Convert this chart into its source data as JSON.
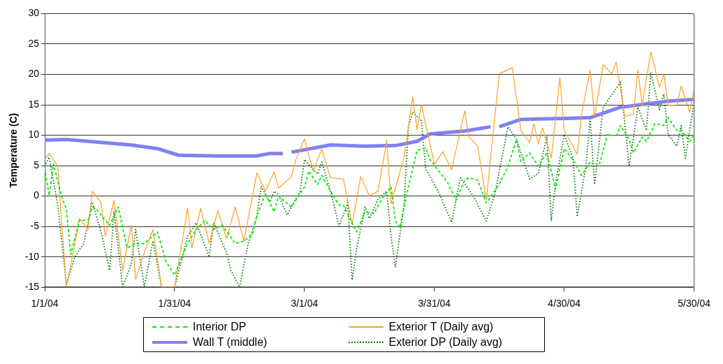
{
  "chart_data": {
    "type": "line",
    "ylabel": "Temperature (C)",
    "xlim": [
      "2004-01-01",
      "2004-05-30"
    ],
    "xticks": [
      {
        "value": "2004-01-01",
        "label": "1/1/04"
      },
      {
        "value": "2004-01-31",
        "label": "1/31/04"
      },
      {
        "value": "2004-03-01",
        "label": "3/1/04"
      },
      {
        "value": "2004-03-31",
        "label": "3/31/04"
      },
      {
        "value": "2004-04-30",
        "label": "4/30/04"
      },
      {
        "value": "2004-05-30",
        "label": "5/30/04"
      }
    ],
    "ylim": [
      -15,
      30
    ],
    "yticks": [
      -15,
      -10,
      -5,
      0,
      5,
      10,
      15,
      20,
      25,
      30
    ],
    "grid": "y",
    "legend": "bottom",
    "marker": "none",
    "series": [
      {
        "name": "Interior DP",
        "color": "#00ee00",
        "line_style": "dashed",
        "x": [
          "2004-01-01",
          "2004-01-02",
          "2004-01-03",
          "2004-01-05",
          "2004-01-06",
          "2004-01-07",
          "2004-01-09",
          "2004-01-11",
          "2004-01-12",
          "2004-01-13",
          "2004-01-15",
          "2004-01-16",
          "2004-01-18",
          "2004-01-20",
          "2004-01-22",
          "2004-01-24",
          "2004-01-27",
          "2004-01-29",
          "2004-01-31",
          "2004-02-03",
          "2004-02-05",
          "2004-02-07",
          "2004-02-09",
          "2004-02-11",
          "2004-02-14",
          "2004-02-16",
          "2004-02-18",
          "2004-02-19",
          "2004-02-21",
          "2004-02-23",
          "2004-02-24",
          "2004-02-27",
          "2004-03-01",
          "2004-03-02",
          "2004-03-04",
          "2004-03-05",
          "2004-03-07",
          "2004-03-09",
          "2004-03-10",
          "2004-03-13",
          "2004-03-15",
          "2004-03-17",
          "2004-03-19",
          "2004-03-21",
          "2004-03-22",
          "2004-03-23",
          "2004-03-25",
          "2004-03-27",
          "2004-03-29",
          "2004-03-30",
          "2004-04-01",
          "2004-04-03",
          "2004-04-05",
          "2004-04-07",
          "2004-04-08",
          "2004-04-10",
          "2004-04-12",
          "2004-04-15",
          "2004-04-17",
          "2004-04-19",
          "2004-04-20",
          "2004-04-22",
          "2004-04-24",
          "2004-04-26",
          "2004-04-28",
          "2004-04-30",
          "2004-05-02",
          "2004-05-04",
          "2004-05-06",
          "2004-05-08",
          "2004-05-10",
          "2004-05-12",
          "2004-05-13",
          "2004-05-15",
          "2004-05-16",
          "2004-05-18",
          "2004-05-19",
          "2004-05-21",
          "2004-05-23",
          "2004-05-24",
          "2004-05-26",
          "2004-05-27",
          "2004-05-29",
          "2004-05-30"
        ],
        "values": [
          4.6,
          0.1,
          5.3,
          -0.3,
          -2.2,
          -9.6,
          -4.0,
          -4.0,
          -1.8,
          -2.2,
          -4.0,
          -4.8,
          -1.8,
          -8.5,
          -7.8,
          -7.8,
          -5.9,
          -10.7,
          -13.0,
          -7.8,
          -5.5,
          -4.0,
          -5.5,
          -4.8,
          -7.8,
          -7.4,
          -6.3,
          -3.3,
          0.4,
          -2.6,
          0,
          -1.8,
          1.5,
          4.1,
          1.9,
          3.4,
          0.8,
          -1.5,
          -1.5,
          -5.9,
          -2.6,
          -2.9,
          -0.3,
          1.5,
          -4.1,
          -5.2,
          1.5,
          7.5,
          7.9,
          6.0,
          4.1,
          2.3,
          -0.7,
          2.6,
          3.0,
          2.6,
          -1.1,
          1.9,
          4.9,
          9.3,
          5.6,
          7.1,
          4.9,
          7.1,
          1.1,
          7.8,
          6.0,
          3.4,
          5.6,
          4.9,
          10.1,
          9.9,
          11.6,
          9.3,
          7.1,
          9.7,
          9.0,
          11.9,
          11.6,
          12.9,
          10.8,
          10.8,
          9.0,
          10.1
        ]
      },
      {
        "name": "Exterior T (Daily avg)",
        "color": "#ffa020",
        "line_style": "solid",
        "x": [
          "2004-01-01",
          "2004-01-02",
          "2004-01-04",
          "2004-01-05",
          "2004-01-06",
          "2004-01-07",
          "2004-01-09",
          "2004-01-11",
          "2004-01-12",
          "2004-01-14",
          "2004-01-15",
          "2004-01-17",
          "2004-01-19",
          "2004-01-21",
          "2004-01-22",
          "2004-01-24",
          "2004-01-26",
          "2004-01-28",
          "2004-01-31",
          "2004-02-03",
          "2004-02-04",
          "2004-02-06",
          "2004-02-08",
          "2004-02-10",
          "2004-02-12",
          "2004-02-14",
          "2004-02-16",
          "2004-02-19",
          "2004-02-21",
          "2004-02-23",
          "2004-02-24",
          "2004-02-27",
          "2004-02-28",
          "2004-03-01",
          "2004-03-03",
          "2004-03-05",
          "2004-03-07",
          "2004-03-10",
          "2004-03-12",
          "2004-03-14",
          "2004-03-16",
          "2004-03-18",
          "2004-03-20",
          "2004-03-21",
          "2004-03-24",
          "2004-03-26",
          "2004-03-27",
          "2004-03-28",
          "2004-03-31",
          "2004-04-02",
          "2004-04-04",
          "2004-04-07",
          "2004-04-08",
          "2004-04-10",
          "2004-04-12",
          "2004-04-15",
          "2004-04-18",
          "2004-04-20",
          "2004-04-22",
          "2004-04-23",
          "2004-04-24",
          "2004-04-25",
          "2004-04-27",
          "2004-04-29",
          "2004-04-30",
          "2004-05-03",
          "2004-05-04",
          "2004-05-06",
          "2004-05-07",
          "2004-05-09",
          "2004-05-11",
          "2004-05-12",
          "2004-05-14",
          "2004-05-16",
          "2004-05-17",
          "2004-05-18",
          "2004-05-20",
          "2004-05-22",
          "2004-05-23",
          "2004-05-24",
          "2004-05-26",
          "2004-05-27",
          "2004-05-29",
          "2004-05-30"
        ],
        "values": [
          6.0,
          7.0,
          4.9,
          -5.1,
          -14.8,
          -11.5,
          -3.7,
          -5.5,
          0.8,
          -1.0,
          -6.6,
          -0.7,
          -12.2,
          -4.8,
          -13.7,
          -9.3,
          -5.5,
          -15,
          -15,
          -2.0,
          -8.5,
          -2.0,
          -7.8,
          -2.4,
          -7.0,
          -1.8,
          -7.4,
          3.8,
          0.8,
          4.0,
          1.3,
          3.2,
          6.0,
          9.4,
          4.1,
          7.7,
          3.0,
          2.8,
          -4.6,
          3.2,
          0,
          0.8,
          9.2,
          -1.3,
          6.4,
          16.3,
          10.9,
          15.0,
          5.3,
          7.3,
          4.3,
          14.0,
          9.7,
          8.2,
          -0.6,
          20.1,
          21.1,
          10.8,
          8.8,
          11.9,
          8.6,
          11.2,
          6.3,
          19.4,
          10.8,
          6.9,
          13.4,
          20.7,
          13.1,
          21.6,
          20.1,
          22.0,
          13.1,
          13.4,
          20.7,
          14.9,
          23.7,
          17.9,
          20.1,
          14.9,
          14.9,
          18.1,
          13.8,
          17.7
        ]
      },
      {
        "name": "Wall T (middle)",
        "color": "#8080f0",
        "line_style": "solid",
        "x": [
          "2004-01-01",
          "2004-01-06",
          "2004-01-11",
          "2004-01-21",
          "2004-01-27",
          "2004-02-01",
          "2004-02-10",
          "2004-02-19",
          "2004-02-22",
          "2004-02-25",
          "2004-02-26",
          "2004-02-27",
          "2004-03-07",
          "2004-03-15",
          "2004-03-22",
          "2004-03-27",
          "2004-03-30",
          "2004-04-07",
          "2004-04-13",
          "2004-04-14",
          "2004-04-15",
          "2004-04-20",
          "2004-05-02",
          "2004-05-06",
          "2004-05-13",
          "2004-05-24",
          "2004-05-30"
        ],
        "values": [
          9.2,
          9.3,
          9.0,
          8.4,
          7.8,
          6.7,
          6.6,
          6.6,
          7.0,
          7.0,
          null,
          7.2,
          8.4,
          8.2,
          8.3,
          9.0,
          10.2,
          10.7,
          11.4,
          null,
          11.4,
          12.6,
          12.8,
          12.9,
          14.6,
          15.6,
          15.9
        ]
      },
      {
        "name": "Exterior DP (Daily avg)",
        "color": "#007000",
        "line_style": "dotted",
        "x": [
          "2004-01-01",
          "2004-01-02",
          "2004-01-04",
          "2004-01-06",
          "2004-01-08",
          "2004-01-10",
          "2004-01-12",
          "2004-01-14",
          "2004-01-16",
          "2004-01-17",
          "2004-01-19",
          "2004-01-21",
          "2004-01-22",
          "2004-01-24",
          "2004-01-26",
          "2004-01-28",
          "2004-01-31",
          "2004-02-03",
          "2004-02-05",
          "2004-02-08",
          "2004-02-09",
          "2004-02-12",
          "2004-02-13",
          "2004-02-15",
          "2004-02-17",
          "2004-02-19",
          "2004-02-20",
          "2004-02-22",
          "2004-02-23",
          "2004-02-24",
          "2004-02-26",
          "2004-02-29",
          "2004-03-01",
          "2004-03-04",
          "2004-03-05",
          "2004-03-07",
          "2004-03-09",
          "2004-03-11",
          "2004-03-12",
          "2004-03-13",
          "2004-03-15",
          "2004-03-16",
          "2004-03-18",
          "2004-03-20",
          "2004-03-21",
          "2004-03-22",
          "2004-03-24",
          "2004-03-25",
          "2004-03-26",
          "2004-03-28",
          "2004-03-29",
          "2004-04-01",
          "2004-04-04",
          "2004-04-06",
          "2004-04-09",
          "2004-04-12",
          "2004-04-14",
          "2004-04-17",
          "2004-04-19",
          "2004-04-22",
          "2004-04-24",
          "2004-04-26",
          "2004-04-27",
          "2004-04-28",
          "2004-04-30",
          "2004-05-02",
          "2004-05-03",
          "2004-05-05",
          "2004-05-06",
          "2004-05-07",
          "2004-05-09",
          "2004-05-13",
          "2004-05-15",
          "2004-05-17",
          "2004-05-19",
          "2004-05-20",
          "2004-05-22",
          "2004-05-23",
          "2004-05-24",
          "2004-05-26",
          "2004-05-27",
          "2004-05-28",
          "2004-05-30"
        ],
        "values": [
          4.9,
          6.4,
          -1.4,
          -14.5,
          -10.0,
          -7.8,
          -1.0,
          -5.9,
          -12.2,
          -2.5,
          -14.9,
          -11.2,
          -5.5,
          -14.9,
          -7.4,
          -15,
          -15,
          -6.6,
          -4.4,
          -10.0,
          -4.4,
          -9.3,
          -12.2,
          -15,
          -7.8,
          -3.3,
          1.6,
          -1.0,
          0.8,
          0.2,
          -3.1,
          0.8,
          6.0,
          3.6,
          5.6,
          0.8,
          -5.0,
          -1.1,
          -13.8,
          -8.9,
          -1.8,
          -3.7,
          -0.5,
          0.8,
          -6.7,
          -11.7,
          -1.5,
          11.4,
          13.8,
          12.4,
          4.5,
          0.6,
          -4.3,
          3.0,
          0,
          -4.1,
          0.4,
          11.4,
          9.3,
          2.8,
          3.7,
          9.7,
          -4.1,
          2.2,
          10.1,
          6.3,
          -3.4,
          4.9,
          12.7,
          1.9,
          14.6,
          18.7,
          4.9,
          14.6,
          10.8,
          20.3,
          14.2,
          16.8,
          10.1,
          8.2,
          11.6,
          6.2,
          15.7
        ]
      }
    ]
  }
}
